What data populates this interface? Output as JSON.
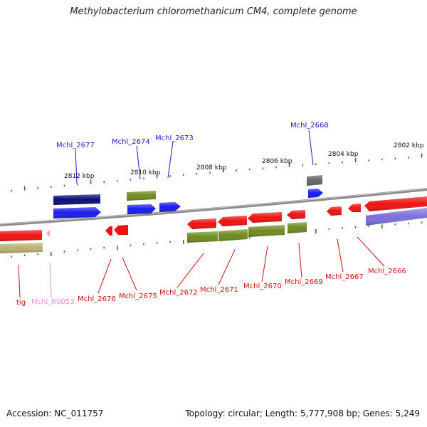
{
  "title": "Methylobacterium chloromethanicum CM4, complete genome",
  "footer": {
    "accession": "Accession: NC_011757",
    "stats": "Topology: circular; Length: 5,777,908 bp; Genes: 5,249"
  },
  "kbp_labels": [
    "2812 kbp",
    "2810 kbp",
    "2808 kbp",
    "2806 kbp",
    "2804 kbp",
    "2802 kbp"
  ],
  "upper_gene_labels": [
    "Mchl_2677",
    "Mchl_2674",
    "Mchl_2673",
    "Mchl_2668"
  ],
  "lower_gene_labels": [
    "tig",
    "Mchl_R0053",
    "Mchl_2676",
    "Mchl_2675",
    "Mchl_2672",
    "Mchl_2671",
    "Mchl_2670",
    "Mchl_2669",
    "Mchl_2667",
    "Mchl_2666"
  ],
  "colors": {
    "label_forward": "#1a1acc",
    "label_reverse": "#cc1111",
    "label_rna": "#e88fc0",
    "gene_red": "#ee1111",
    "gene_blue": "#1a1aee",
    "gene_navy": "#0a0a7a",
    "gene_olive": "#6e8a1e",
    "gene_gray": "#666666",
    "gene_purple": "#7a6fdc",
    "gene_khaki": "#b8b070",
    "gene_pink": "#f4a6c8",
    "tick": "#1a7a1a",
    "backbone": "#8a8a8a"
  }
}
